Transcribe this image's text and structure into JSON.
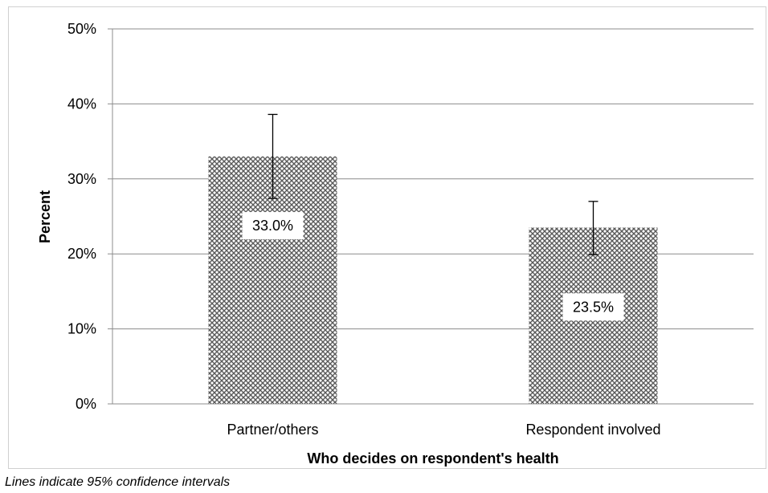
{
  "chart_data": {
    "type": "bar",
    "categories": [
      "Partner/others",
      "Respondent involved"
    ],
    "values": [
      33.0,
      23.5
    ],
    "error_bars": [
      {
        "low": 27.4,
        "high": 38.6
      },
      {
        "low": 19.9,
        "high": 27.0
      }
    ],
    "data_labels": [
      "33.0%",
      "23.5%"
    ],
    "title": "",
    "xlabel": "Who decides on respondent's health",
    "ylabel": "Percent",
    "ylim": [
      0,
      50
    ],
    "yticks": [
      0,
      10,
      20,
      30,
      40,
      50
    ],
    "ytick_labels": [
      "0%",
      "10%",
      "20%",
      "30%",
      "40%",
      "50%"
    ],
    "grid": true,
    "bar_pattern": "crosshatch-gray"
  },
  "footnote": "Lines indicate 95% confidence intervals",
  "colors": {
    "grid": "#8c8c8c",
    "bar_fill_dark": "#595959",
    "bar_fill_light": "#ffffff",
    "error_bar": "#000000"
  }
}
